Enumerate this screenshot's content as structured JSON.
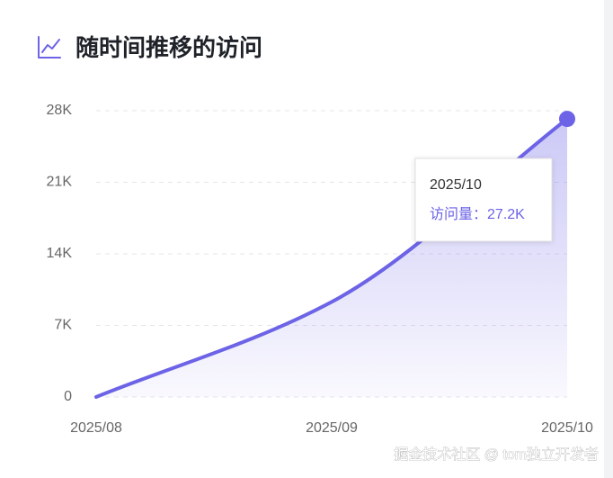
{
  "title": "随时间推移的访问",
  "chart_data": {
    "type": "line",
    "categories": [
      "2025/08",
      "2025/09",
      "2025/10"
    ],
    "series": [
      {
        "name": "访问量",
        "color": "#6c63e6",
        "values": [
          0,
          9300,
          27200
        ],
        "value_labels": [
          null,
          null,
          "27.2K"
        ]
      }
    ],
    "ylim": [
      0,
      28000
    ],
    "yticks": [
      0,
      {
        "value": 7000,
        "label": "7K"
      },
      {
        "value": 14000,
        "label": "14K"
      },
      {
        "value": 21000,
        "label": "21K"
      },
      {
        "value": 28000,
        "label": "28K"
      }
    ],
    "grid": true,
    "tooltip_separator": "："
  },
  "watermark": "掘金技术社区 @ tom独立开发者"
}
